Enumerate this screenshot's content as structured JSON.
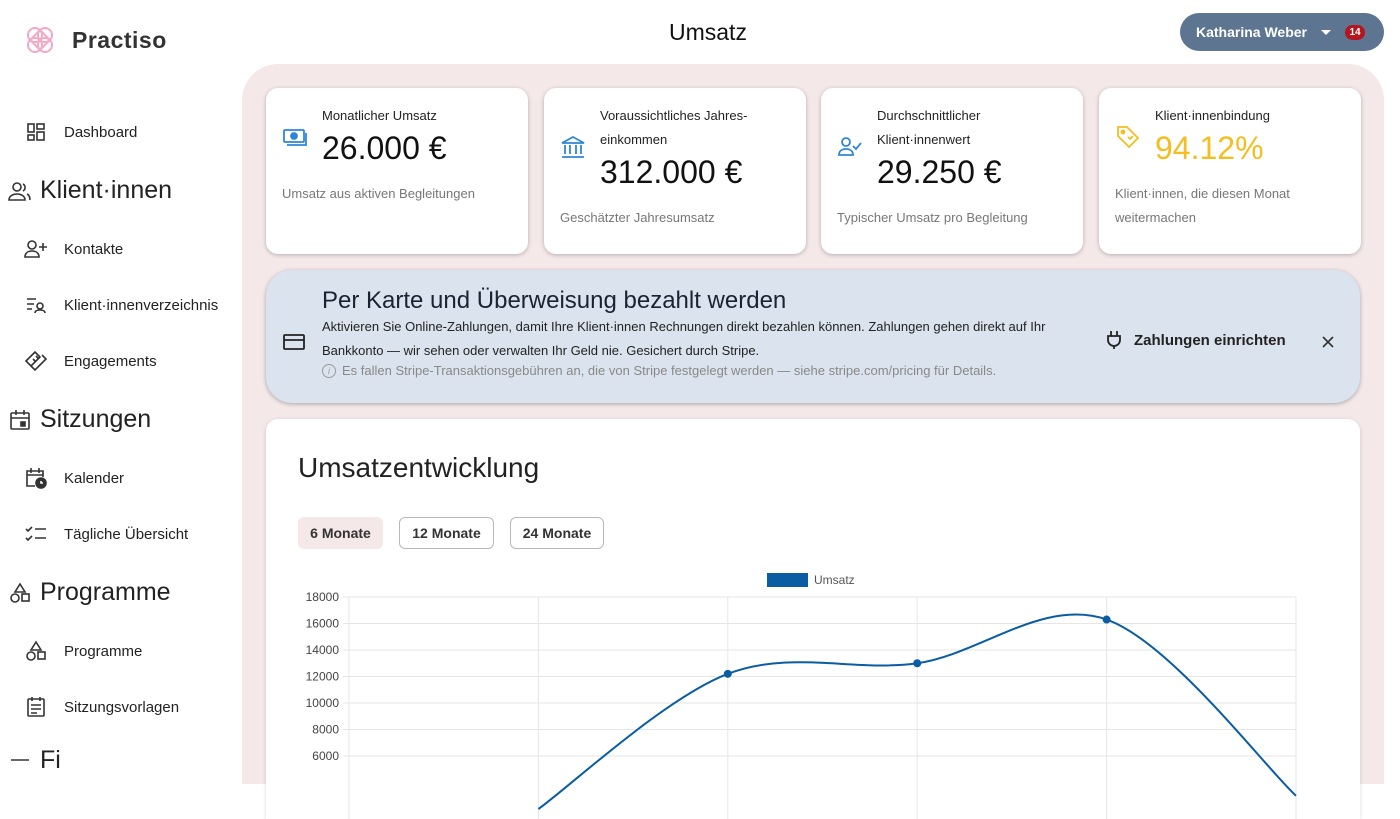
{
  "app": {
    "name": "Practiso",
    "page_title": "Umsatz"
  },
  "user": {
    "name": "Katharina Weber",
    "notifications": "14"
  },
  "sidebar": {
    "dashboard": "Dashboard",
    "section_clients": "Klient·innen",
    "contacts": "Kontakte",
    "client_directory": "Klient·innenverzeichnis",
    "engagements": "Engagements",
    "section_sessions": "Sitzungen",
    "calendar": "Kalender",
    "daily_overview": "Tägliche Übersicht",
    "section_programs": "Programme",
    "programs": "Programme",
    "session_templates": "Sitzungsvorlagen",
    "section_cut": "Fi"
  },
  "kpis": [
    {
      "label": "Monatlicher Umsatz",
      "value": "26.000 €",
      "sub": "Umsatz aus aktiven Begleitungen",
      "icon": "money-icon"
    },
    {
      "label": "Voraussichtliches Jahres-einkommen",
      "value": "312.000 €",
      "sub": "Geschätzter Jahresumsatz",
      "icon": "bank-icon"
    },
    {
      "label": "Durchschnittlicher Klient·innenwert",
      "value": "29.250 €",
      "sub": "Typischer Umsatz pro Begleitung",
      "icon": "user-check-icon"
    },
    {
      "label": "Klient·innenbindung",
      "value": "94.12%",
      "sub": "Klient·innen, die diesen Monat weitermachen",
      "icon": "tag-heart-icon"
    }
  ],
  "banner": {
    "title": "Per Karte und Überweisung bezahlt werden",
    "text": "Aktivieren Sie Online-Zahlungen, damit Ihre Klient·innen Rechnungen direkt bezahlen können. Zahlungen gehen direkt auf Ihr Bankkonto — wir sehen oder verwalten Ihr Geld nie. Gesichert durch Stripe.",
    "note": "Es fallen Stripe-Transaktionsgebühren an, die von Stripe festgelegt werden — siehe stripe.com/pricing für Details.",
    "action": "Zahlungen einrichten"
  },
  "revenue": {
    "title": "Umsatzentwicklung",
    "ranges": [
      "6 Monate",
      "12 Monate",
      "24 Monate"
    ],
    "active_range": "6 Monate"
  },
  "colors": {
    "accent": "#f4e8e9",
    "line": "#0a5ca3",
    "kpi_highlight": "#f5bd1f",
    "pill": "#5d7591"
  },
  "chart_data": {
    "type": "line",
    "legend": [
      "Umsatz"
    ],
    "series": [
      {
        "name": "Umsatz",
        "values": [
          null,
          2000,
          12200,
          13000,
          16300,
          3000
        ]
      }
    ],
    "y_ticks": [
      18000,
      16000,
      14000,
      12000,
      10000,
      8000,
      6000
    ],
    "ylim": [
      0,
      18000
    ],
    "grid": true,
    "legend_position": "top-center"
  }
}
